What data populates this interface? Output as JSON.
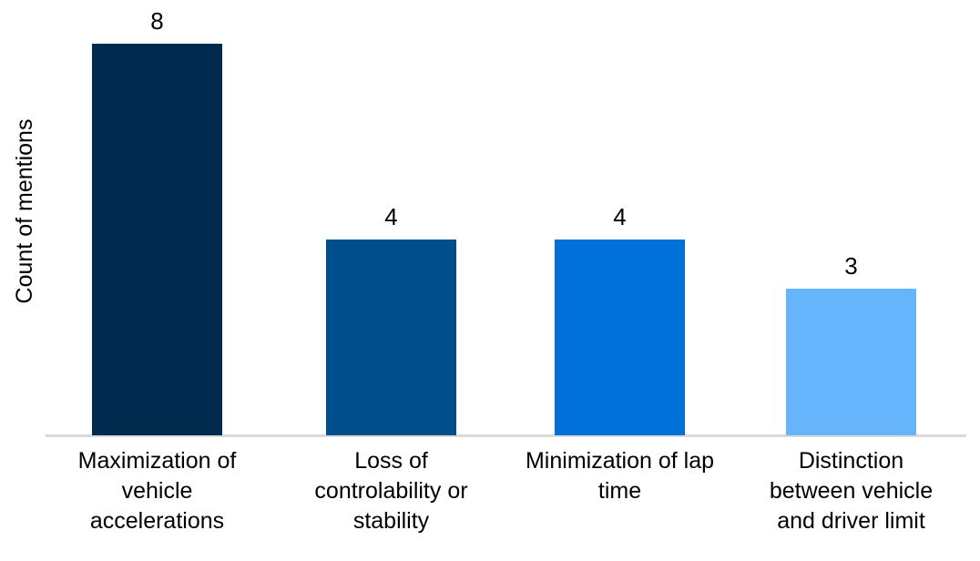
{
  "chart_data": {
    "type": "bar",
    "title": "",
    "xlabel": "",
    "ylabel": "Count of mentions",
    "categories": [
      "Maximization of\nvehicle\naccelerations",
      "Loss of\ncontrolability or\nstability",
      "Minimization of lap\ntime",
      "Distinction\nbetween vehicle\nand driver limit"
    ],
    "values": [
      8,
      4,
      4,
      3
    ],
    "data_labels": [
      "8",
      "4",
      "4",
      "3"
    ],
    "bar_colors": [
      "#002B4E",
      "#004E8C",
      "#0071D8",
      "#66B5FC"
    ],
    "ylim": [
      0,
      8
    ],
    "grid": false,
    "legend": false,
    "axis_line_color": "#D9D9D9",
    "text_color": "#000000"
  }
}
